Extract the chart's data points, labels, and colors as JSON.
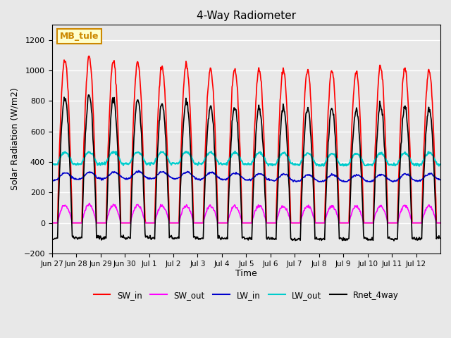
{
  "title": "4-Way Radiometer",
  "xlabel": "Time",
  "ylabel": "Solar Radiation (W/m2)",
  "ylim": [
    -200,
    1300
  ],
  "yticks": [
    -200,
    0,
    200,
    400,
    600,
    800,
    1000,
    1200
  ],
  "background_color": "#e8e8e8",
  "station_label": "MB_tule",
  "station_label_color": "#cc8800",
  "station_label_bg": "#ffffcc",
  "station_label_border": "#cc8800",
  "x_tick_labels": [
    "Jun 27",
    "Jun 28",
    "Jun 29",
    "Jun 30",
    "Jul 1",
    "Jul 2",
    "Jul 3",
    "Jul 4",
    "Jul 5",
    "Jul 6",
    "Jul 7",
    "Jul 8",
    "Jul 9",
    "Jul 10",
    "Jul 11",
    "Jul 12"
  ],
  "series": {
    "SW_in": {
      "color": "#ff0000",
      "lw": 1.2
    },
    "SW_out": {
      "color": "#ff00ff",
      "lw": 1.2
    },
    "LW_in": {
      "color": "#0000cc",
      "lw": 1.2
    },
    "LW_out": {
      "color": "#00cccc",
      "lw": 1.5
    },
    "Rnet_4way": {
      "color": "#000000",
      "lw": 1.2
    }
  },
  "n_days": 16,
  "dt_minutes": 30
}
